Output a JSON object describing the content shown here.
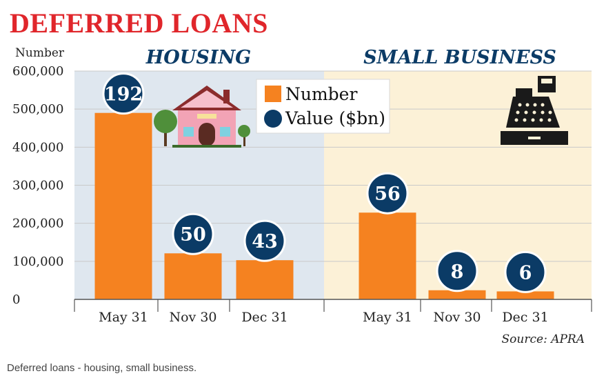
{
  "caption": "Deferred loans - housing, small business.",
  "chart_data": {
    "type": "bar",
    "title": "DEFERRED LOANS",
    "ylabel": "Number",
    "ylim": [
      0,
      600000
    ],
    "yticks": [
      0,
      100000,
      200000,
      300000,
      400000,
      500000,
      600000
    ],
    "ytick_labels": [
      "0",
      "100,000",
      "200,000",
      "300,000",
      "400,000",
      "500,000",
      "600,000"
    ],
    "grid": true,
    "legend": {
      "placement": "top-center",
      "entries": [
        {
          "label": "Number",
          "marker": "square",
          "color": "#f58220"
        },
        {
          "label": "Value ($bn)",
          "marker": "circle",
          "color": "#0b3b66"
        }
      ]
    },
    "bubble_label_series": "Value ($bn)",
    "panels": [
      {
        "title": "HOUSING",
        "categories": [
          "May 31",
          "Nov 30",
          "Dec 31"
        ],
        "series": [
          {
            "name": "Number",
            "values": [
              490000,
              121000,
              103000
            ]
          },
          {
            "name": "Value ($bn)",
            "values": [
              192,
              50,
              43
            ]
          }
        ],
        "background": "#dfe7ef"
      },
      {
        "title": "SMALL BUSINESS",
        "categories": [
          "May 31",
          "Nov 30",
          "Dec 31"
        ],
        "series": [
          {
            "name": "Number",
            "values": [
              228000,
              24000,
              21000
            ]
          },
          {
            "name": "Value ($bn)",
            "values": [
              56,
              8,
              6
            ]
          }
        ],
        "background": "#fcf1d7"
      }
    ],
    "source": "Source: APRA",
    "colors": {
      "bar": "#f58220",
      "bubble": "#0b3b66",
      "bubble_border": "#ffffff",
      "grid": "#c9c9c9",
      "title": "#e0262b",
      "panel_title": "#0b3b66"
    },
    "icons": [
      "house-icon",
      "tree-icon",
      "cash-register-icon"
    ]
  }
}
